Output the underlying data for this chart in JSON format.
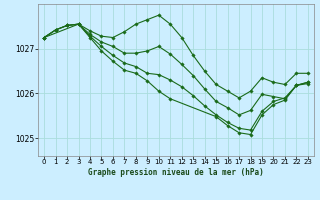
{
  "title": "Graphe pression niveau de la mer (hPa)",
  "bg_color": "#cceeff",
  "grid_color": "#aadddd",
  "line_color": "#1a6b1a",
  "ylim": [
    1024.6,
    1028.0
  ],
  "xlim": [
    -0.5,
    23.5
  ],
  "yticks": [
    1025,
    1026,
    1027
  ],
  "xticks": [
    0,
    1,
    2,
    3,
    4,
    5,
    6,
    7,
    8,
    9,
    10,
    11,
    12,
    13,
    14,
    15,
    16,
    17,
    18,
    19,
    20,
    21,
    22,
    23
  ],
  "lines": [
    {
      "x": [
        0,
        1,
        2,
        3,
        4,
        5,
        6,
        7,
        8,
        9,
        10,
        11,
        12,
        13,
        14,
        15,
        16,
        17,
        18,
        19,
        20,
        21,
        22,
        23
      ],
      "y": [
        1027.25,
        1027.42,
        1027.52,
        1027.55,
        1027.4,
        1027.28,
        1027.25,
        1027.38,
        1027.55,
        1027.65,
        1027.75,
        1027.55,
        1027.25,
        1026.85,
        1026.5,
        1026.2,
        1026.05,
        1025.9,
        1026.05,
        1026.35,
        1026.25,
        1026.2,
        1026.45,
        1026.45
      ]
    },
    {
      "x": [
        0,
        1,
        2,
        3,
        4,
        5,
        6,
        7,
        8,
        9,
        10,
        11,
        12,
        13,
        14,
        15,
        16,
        17,
        18,
        19,
        20,
        21,
        22,
        23
      ],
      "y": [
        1027.25,
        1027.42,
        1027.52,
        1027.55,
        1027.32,
        1027.15,
        1027.05,
        1026.9,
        1026.9,
        1026.95,
        1027.05,
        1026.88,
        1026.65,
        1026.4,
        1026.1,
        1025.82,
        1025.68,
        1025.52,
        1025.62,
        1025.98,
        1025.93,
        1025.88,
        1026.18,
        1026.22
      ]
    },
    {
      "x": [
        0,
        3,
        4,
        5,
        6,
        7,
        8,
        9,
        10,
        11,
        12,
        13,
        14,
        15,
        16,
        17,
        18,
        19,
        20,
        21,
        22,
        23
      ],
      "y": [
        1027.25,
        1027.55,
        1027.28,
        1027.05,
        1026.85,
        1026.68,
        1026.6,
        1026.45,
        1026.42,
        1026.3,
        1026.15,
        1025.95,
        1025.72,
        1025.52,
        1025.35,
        1025.22,
        1025.18,
        1025.6,
        1025.82,
        1025.9,
        1026.18,
        1026.25
      ]
    },
    {
      "x": [
        0,
        1,
        2,
        3,
        4,
        5,
        6,
        7,
        8,
        9,
        10,
        11,
        15,
        16,
        17,
        18,
        19,
        20,
        21,
        22,
        23
      ],
      "y": [
        1027.25,
        1027.42,
        1027.52,
        1027.55,
        1027.25,
        1026.95,
        1026.72,
        1026.52,
        1026.45,
        1026.28,
        1026.05,
        1025.88,
        1025.48,
        1025.28,
        1025.12,
        1025.08,
        1025.52,
        1025.75,
        1025.85,
        1026.18,
        1026.25
      ]
    }
  ]
}
